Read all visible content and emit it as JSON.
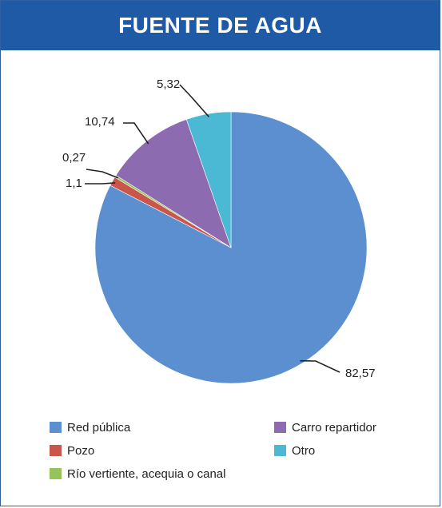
{
  "header": {
    "title": "FUENTE DE AGUA"
  },
  "chart_data": {
    "type": "pie",
    "title": "FUENTE DE AGUA",
    "slices": [
      {
        "name": "Red pública",
        "value": 82.57,
        "label": "82,57",
        "color": "#5b8fcf"
      },
      {
        "name": "Pozo",
        "value": 1.1,
        "label": "1,1",
        "color": "#c9564a"
      },
      {
        "name": "Río vertiente, acequia o canal",
        "value": 0.27,
        "label": "0,27",
        "color": "#98c25a"
      },
      {
        "name": "Carro repartidor",
        "value": 10.74,
        "label": "10,74",
        "color": "#8c6bb1"
      },
      {
        "name": "Otro",
        "value": 5.32,
        "label": "5,32",
        "color": "#4bb8d4"
      }
    ],
    "legend": {
      "placement": "bottom",
      "items": [
        {
          "label": "Red pública",
          "color": "#5b8fcf"
        },
        {
          "label": "Carro repartidor",
          "color": "#8c6bb1"
        },
        {
          "label": "Pozo",
          "color": "#c9564a"
        },
        {
          "label": "Otro",
          "color": "#4bb8d4"
        },
        {
          "label": "Río vertiente, acequia o canal",
          "color": "#98c25a"
        }
      ]
    }
  }
}
